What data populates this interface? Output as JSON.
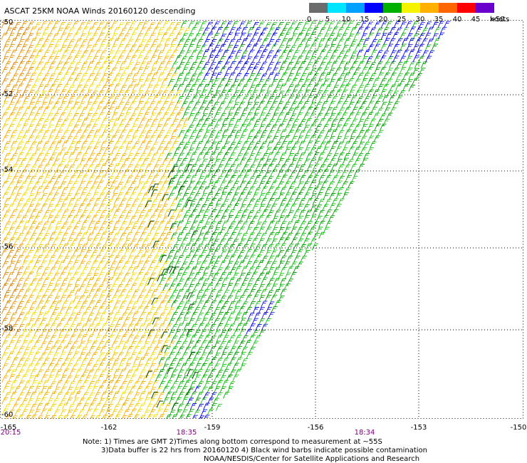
{
  "title": "ASCAT 25KM NOAA Winds 20160120 descending",
  "colorbar": {
    "segments": [
      {
        "label": "0",
        "color": "#6b6b6b"
      },
      {
        "label": "5",
        "color": "#00e5ff"
      },
      {
        "label": "10",
        "color": "#00a0ff"
      },
      {
        "label": "15",
        "color": "#0000ff"
      },
      {
        "label": "20",
        "color": "#00b000"
      },
      {
        "label": "25",
        "color": "#f4f400"
      },
      {
        "label": "30",
        "color": "#ffb000"
      },
      {
        "label": "35",
        "color": "#ff6600"
      },
      {
        "label": "40",
        "color": "#ff0000"
      },
      {
        "label": "45",
        "color": "#cc00cc"
      },
      {
        "label": ">50",
        "color": "#6a00cc"
      }
    ],
    "units": "knots"
  },
  "axes": {
    "lat_labels": [
      "-50",
      "-52",
      "-54",
      "-56",
      "-58",
      "-60"
    ],
    "lon_labels": [
      "-165",
      "-162",
      "-159",
      "-156",
      "-153",
      "-150"
    ]
  },
  "time_labels": [
    "20:15",
    "18:35",
    "18:34"
  ],
  "notes": {
    "line1": "Note: 1) Times are GMT 2)Times along bottom correspond to measurement at ~55S",
    "line2": "3)Data buffer is 22 hrs from 20160120 4) Black wind barbs indicate possible contamination",
    "line3": "NOAA/NESDIS/Center for Satellite Applications and Research"
  },
  "wind_field": {
    "swath_edge": "diagonal, from about -152.3,-50 to -159.3,-60",
    "regions": [
      {
        "name": "west",
        "speed_knots": "25-35",
        "color": "#f0c800"
      },
      {
        "name": "central",
        "speed_knots": "20-25",
        "color": "#00b000"
      },
      {
        "name": "north-east",
        "speed_knots": "15-20",
        "color": "#0000ff"
      }
    ]
  }
}
